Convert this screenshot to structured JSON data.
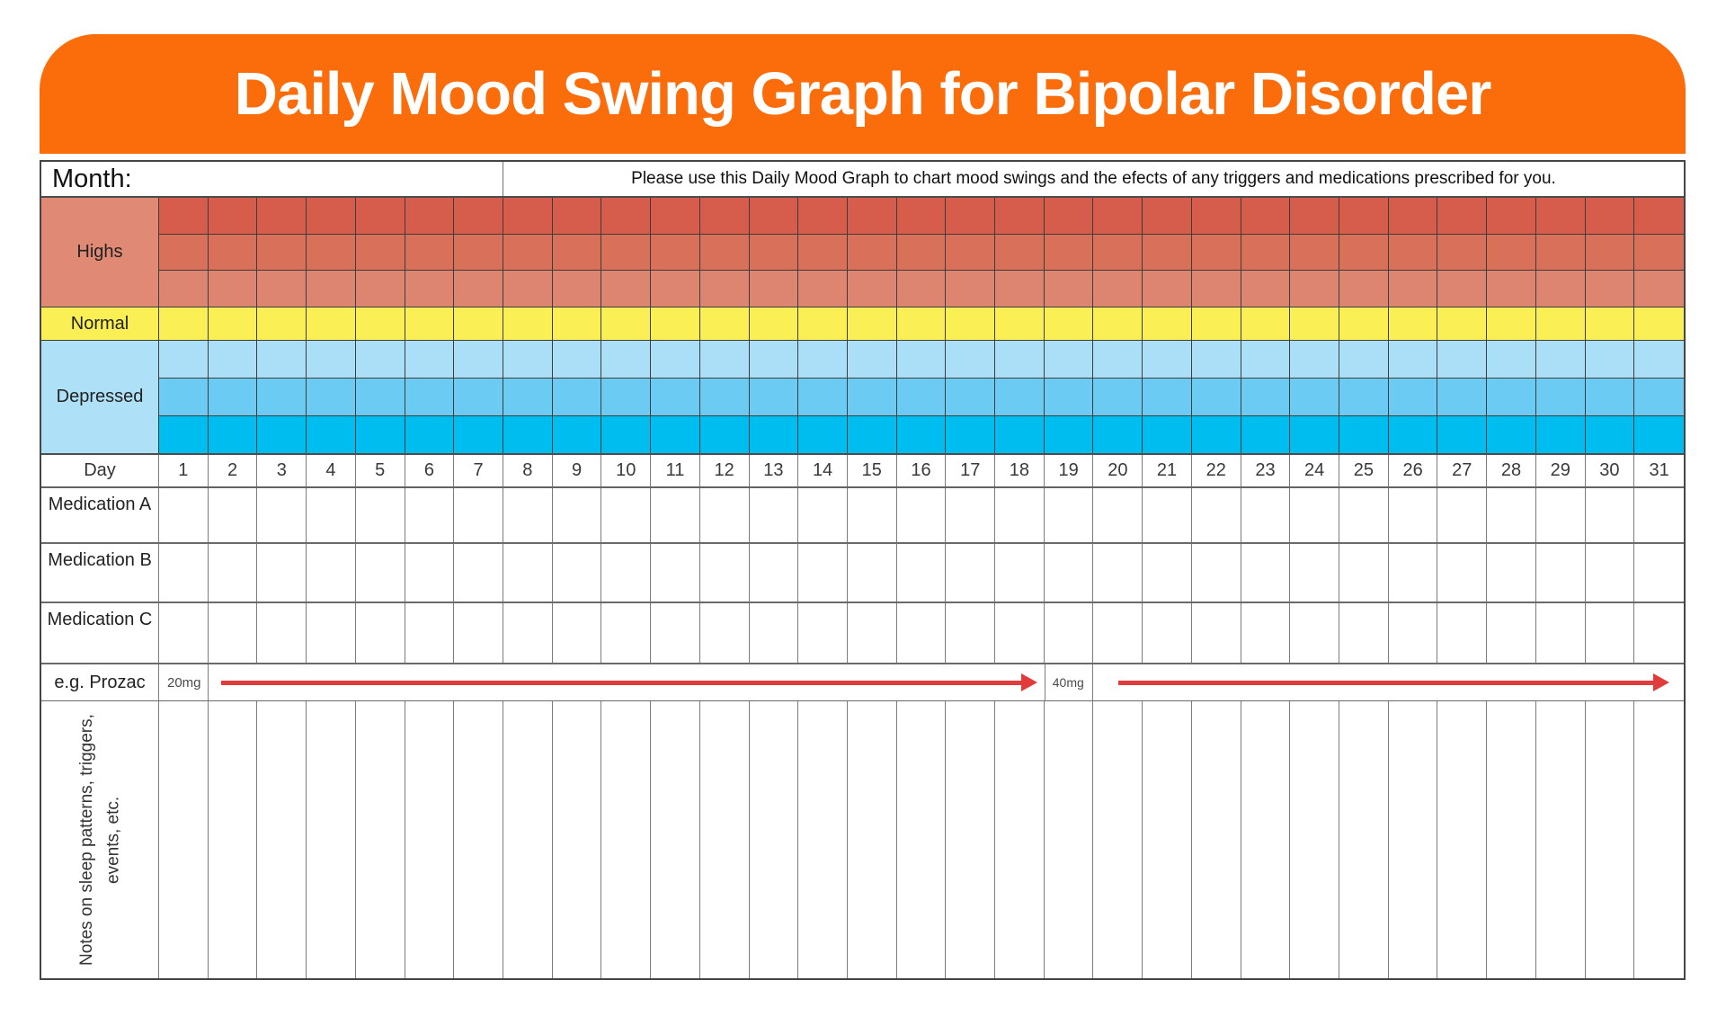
{
  "banner": {
    "title": "Daily Mood Swing Graph for Bipolar Disorder"
  },
  "header_row": {
    "month_label": "Month:",
    "instructions": "Please use this Daily Mood Graph to chart mood swings and the efects of any triggers and medications prescribed for you."
  },
  "mood_scale": {
    "highs_label": "Highs",
    "normal_label": "Normal",
    "depressed_label": "Depressed"
  },
  "day_row": {
    "label": "Day"
  },
  "days": [
    "1",
    "2",
    "3",
    "4",
    "5",
    "6",
    "7",
    "8",
    "9",
    "10",
    "11",
    "12",
    "13",
    "14",
    "15",
    "16",
    "17",
    "18",
    "19",
    "20",
    "21",
    "22",
    "23",
    "24",
    "25",
    "26",
    "27",
    "28",
    "29",
    "30",
    "31"
  ],
  "medications": {
    "row_a": "Medication A",
    "row_b": "Medication B",
    "row_c": "Medication C"
  },
  "example": {
    "label": "e.g. Prozac",
    "dose_start": "20mg",
    "dose_start_day": "1",
    "dose_start_span_days": "2-18",
    "dose_change": "40mg",
    "dose_change_day": "19",
    "dose_change_span_days": "20-31"
  },
  "notes": {
    "label": "Notes on sleep patterns, triggers, events, etc."
  },
  "colors": {
    "banner_orange": "#FB6C0A",
    "highs_label_bg": "#E08A75",
    "high_band_1": "#D65C4B",
    "high_band_2": "#D9705A",
    "high_band_3": "#DD8570",
    "normal_band": "#FAEF54",
    "depressed_label_bg": "#AEE0F8",
    "depressed_band_1": "#ABDEF7",
    "depressed_band_2": "#6CCBF2",
    "depressed_band_3": "#00BDEF",
    "arrow_red": "#E23B3C"
  }
}
